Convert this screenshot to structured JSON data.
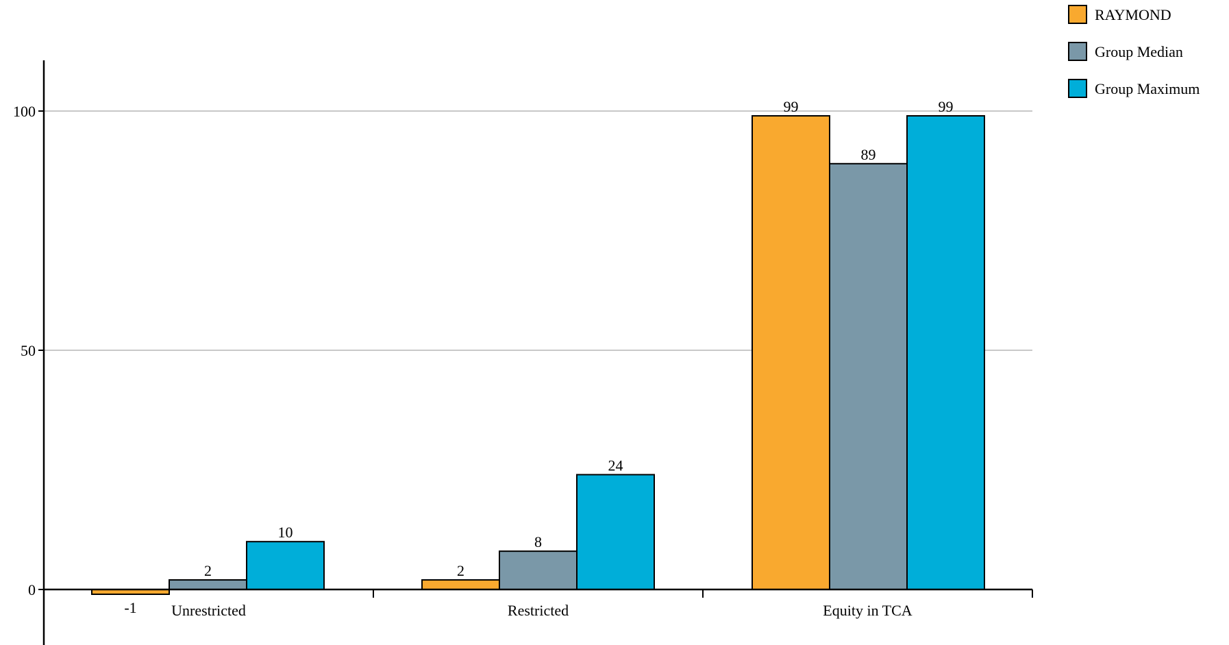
{
  "chart_data": {
    "type": "bar",
    "categories": [
      "Unrestricted",
      "Restricted",
      "Equity in TCA"
    ],
    "series": [
      {
        "name": "RAYMOND",
        "color": "#F9A92F",
        "values": [
          -1,
          2,
          99
        ]
      },
      {
        "name": "Group Median",
        "color": "#7A98A8",
        "values": [
          2,
          8,
          89
        ]
      },
      {
        "name": "Group Maximum",
        "color": "#00AED9",
        "values": [
          10,
          24,
          99
        ]
      }
    ],
    "data_labels": [
      [
        "-1",
        "2",
        "99"
      ],
      [
        "2",
        "8",
        "89"
      ],
      [
        "10",
        "24",
        "99"
      ]
    ],
    "yticks": [
      0,
      50,
      100
    ],
    "ytick_labels": [
      "0",
      "50",
      "100"
    ],
    "ylim": [
      -12,
      111
    ],
    "title": "",
    "xlabel": "",
    "ylabel": "",
    "grid": true,
    "legend_position": "top-right"
  }
}
